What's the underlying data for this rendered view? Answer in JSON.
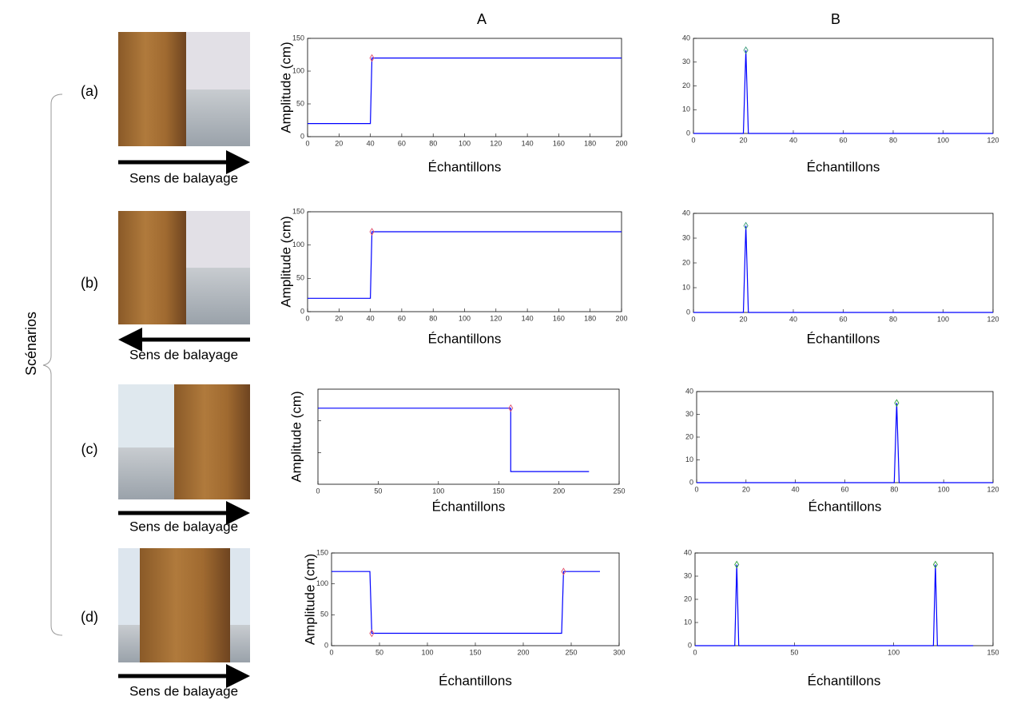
{
  "figure": {
    "columns": [
      "A",
      "B"
    ],
    "group_label": "Scénarios",
    "rows": [
      {
        "label": "(a)",
        "caption": "Sens de balayage"
      },
      {
        "label": "(b)",
        "caption": "Sens de balayage"
      },
      {
        "label": "(c)",
        "caption": "Sens de balayage"
      },
      {
        "label": "(d)",
        "caption": "Sens de balayage"
      }
    ]
  },
  "chart_data": [
    {
      "type": "line",
      "ylabel": "Amplitude (cm)",
      "xlabel": "Échantillons",
      "xlim": [
        0,
        200
      ],
      "xticks": [
        0,
        20,
        40,
        60,
        80,
        100,
        120,
        140,
        160,
        180,
        200
      ],
      "ylim": [
        0,
        150
      ],
      "yticks": [
        0,
        50,
        100,
        150
      ],
      "series": [
        {
          "color": "#0000ff",
          "x": [
            0,
            40,
            41,
            200
          ],
          "values": [
            20,
            20,
            120,
            120
          ]
        },
        {
          "color": "#e0506e",
          "marker": "diamond",
          "x": [
            41
          ],
          "values": [
            120
          ]
        }
      ]
    },
    {
      "type": "line",
      "xlabel": "Échantillons",
      "xlim": [
        0,
        120
      ],
      "xticks": [
        0,
        20,
        40,
        60,
        80,
        100,
        120
      ],
      "ylim": [
        0,
        40
      ],
      "yticks": [
        0,
        10,
        20,
        30,
        40
      ],
      "series": [
        {
          "color": "#0000ff",
          "x": [
            0,
            20,
            21,
            22,
            120
          ],
          "values": [
            0,
            0,
            35,
            0,
            0
          ]
        },
        {
          "color": "#3a9a7a",
          "marker": "diamond",
          "x": [
            21
          ],
          "values": [
            35
          ]
        }
      ]
    },
    {
      "type": "line",
      "ylabel": "Amplitude (cm)",
      "xlabel": "Échantillons",
      "xlim": [
        0,
        200
      ],
      "xticks": [
        0,
        20,
        40,
        60,
        80,
        100,
        120,
        140,
        160,
        180,
        200
      ],
      "ylim": [
        0,
        150
      ],
      "yticks": [
        0,
        50,
        100,
        150
      ],
      "series": [
        {
          "color": "#0000ff",
          "x": [
            0,
            40,
            41,
            200
          ],
          "values": [
            20,
            20,
            120,
            120
          ]
        },
        {
          "color": "#e0506e",
          "marker": "diamond",
          "x": [
            41
          ],
          "values": [
            120
          ]
        }
      ]
    },
    {
      "type": "line",
      "xlabel": "Échantillons",
      "xlim": [
        0,
        120
      ],
      "xticks": [
        0,
        20,
        40,
        60,
        80,
        100,
        120
      ],
      "ylim": [
        0,
        40
      ],
      "yticks": [
        0,
        10,
        20,
        30,
        40
      ],
      "series": [
        {
          "color": "#0000ff",
          "x": [
            0,
            20,
            21,
            22,
            120
          ],
          "values": [
            0,
            0,
            35,
            0,
            0
          ]
        },
        {
          "color": "#3a9a7a",
          "marker": "diamond",
          "x": [
            21
          ],
          "values": [
            35
          ]
        }
      ]
    },
    {
      "type": "line",
      "ylabel": "Amplitude (cm)",
      "xlabel": "Échantillons",
      "xlim": [
        0,
        250
      ],
      "xticks": [
        0,
        50,
        100,
        150,
        200,
        250
      ],
      "ylim": [
        0,
        150
      ],
      "yticks_unlabeled": [
        50,
        100
      ],
      "series": [
        {
          "color": "#0000ff",
          "x": [
            0,
            160,
            160,
            225
          ],
          "values": [
            120,
            120,
            20,
            20
          ]
        },
        {
          "color": "#e0506e",
          "marker": "diamond",
          "x": [
            160
          ],
          "values": [
            120
          ]
        }
      ]
    },
    {
      "type": "line",
      "xlabel": "Échantillons",
      "xlim": [
        0,
        120
      ],
      "xticks": [
        0,
        20,
        40,
        60,
        80,
        100,
        120
      ],
      "ylim": [
        0,
        40
      ],
      "yticks": [
        0,
        10,
        20,
        30,
        40
      ],
      "series": [
        {
          "color": "#0000ff",
          "x": [
            0,
            80,
            81,
            82,
            120
          ],
          "values": [
            0,
            0,
            35,
            0,
            0
          ]
        },
        {
          "color": "#2e9e3e",
          "marker": "diamond",
          "x": [
            81
          ],
          "values": [
            35
          ]
        }
      ]
    },
    {
      "type": "line",
      "ylabel": "Amplitude (cm)",
      "xlabel": "Échantillons",
      "xlim": [
        0,
        300
      ],
      "xticks": [
        0,
        50,
        100,
        150,
        200,
        250,
        300
      ],
      "ylim": [
        0,
        150
      ],
      "yticks": [
        0,
        50,
        100,
        150
      ],
      "series": [
        {
          "color": "#0000ff",
          "x": [
            0,
            40,
            42,
            240,
            242,
            280
          ],
          "values": [
            120,
            120,
            20,
            20,
            120,
            120
          ]
        },
        {
          "color": "#e0506e",
          "marker": "diamond",
          "x": [
            42,
            242
          ],
          "values": [
            20,
            120
          ]
        }
      ]
    },
    {
      "type": "line",
      "xlabel": "Échantillons",
      "xlim": [
        0,
        150
      ],
      "xticks": [
        0,
        50,
        100,
        150
      ],
      "ylim": [
        0,
        40
      ],
      "yticks": [
        0,
        10,
        20,
        30,
        40
      ],
      "series": [
        {
          "color": "#0000ff",
          "x": [
            0,
            20,
            21,
            22,
            120,
            121,
            122,
            140
          ],
          "values": [
            0,
            0,
            35,
            0,
            0,
            35,
            0,
            0
          ]
        },
        {
          "color": "#2e9e3e",
          "marker": "diamond",
          "x": [
            21,
            121
          ],
          "values": [
            35,
            35
          ]
        }
      ]
    }
  ]
}
